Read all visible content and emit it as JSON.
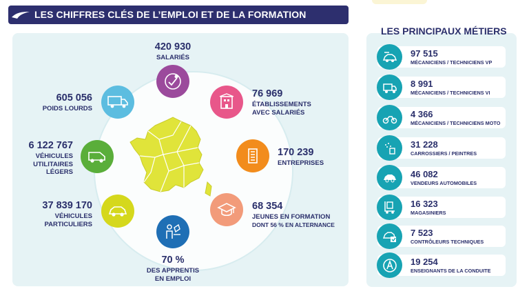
{
  "header": {
    "title": "LES CHIFFRES CLÉS DE L’EMPLOI ET DE LA FORMATION"
  },
  "colors": {
    "navy": "#2d2f6e",
    "teal": "#17a3b3",
    "purple": "#9b4a9c",
    "pink": "#e8578a",
    "orange": "#f28c1c",
    "peach": "#f29b7a",
    "blue": "#1f6fb5",
    "yellow": "#d5d81c",
    "green": "#5aae3a",
    "sky": "#5cbde0",
    "map": "#e0e43a"
  },
  "stats": [
    {
      "id": "salaries",
      "value": "420 930",
      "label": "SALARIÉS",
      "color": "purple",
      "icon": "worker-icon"
    },
    {
      "id": "etablissements",
      "value": "76 969",
      "label1": "ÉTABLISSEMENTS",
      "label2": "AVEC SALARIÉS",
      "color": "pink",
      "icon": "building-icon"
    },
    {
      "id": "entreprises",
      "value": "170 239",
      "label": "ENTREPRISES",
      "color": "orange",
      "icon": "office-tower-icon"
    },
    {
      "id": "jeunes",
      "value": "68 354",
      "label": "JEUNES EN FORMATION",
      "sub": "DONT 56 % EN ALTERNANCE",
      "color": "peach",
      "icon": "graduation-cap-icon"
    },
    {
      "id": "apprentis",
      "value": "70 %",
      "label1": "DES APPRENTIS",
      "label2": "EN EMPLOI",
      "color": "blue",
      "icon": "apprentice-icon"
    },
    {
      "id": "vp",
      "value": "37 839 170",
      "label1": "VÉHICULES",
      "label2": "PARTICULIERS",
      "color": "yellow",
      "icon": "car-icon"
    },
    {
      "id": "vul",
      "value": "6 122 767",
      "label1": "VÉHICULES",
      "label2": "UTILITAIRES",
      "label3": "LÉGERS",
      "color": "green",
      "icon": "van-icon"
    },
    {
      "id": "pl",
      "value": "605 056",
      "label": "POIDS LOURDS",
      "color": "sky",
      "icon": "truck-icon"
    }
  ],
  "metiers": {
    "title": "LES PRINCIPAUX MÉTIERS",
    "items": [
      {
        "value": "97 515",
        "label": "MÉCANICIENS / TECHNICIENS VP",
        "icon": "car-wrench-icon"
      },
      {
        "value": "8 991",
        "label": "MÉCANICIENS / TECHNICIENS VI",
        "icon": "truck-wrench-icon"
      },
      {
        "value": "4 366",
        "label": "MÉCANICIENS / TECHNICIENS MOTO",
        "icon": "motorcycle-wrench-icon"
      },
      {
        "value": "31 228",
        "label": "CARROSSIERS / PEINTRES",
        "icon": "spray-paint-icon"
      },
      {
        "value": "46 082",
        "label": "VENDEURS AUTOMOBILES",
        "icon": "car-sale-icon"
      },
      {
        "value": "16 323",
        "label": "MAGASINIERS",
        "icon": "warehouse-trolley-icon"
      },
      {
        "value": "7 523",
        "label": "CONTRÔLEURS TECHNIQUES",
        "icon": "inspection-icon"
      },
      {
        "value": "19 254",
        "label": "ENSEIGNANTS DE LA CONDUITE",
        "icon": "driving-school-icon"
      }
    ]
  }
}
